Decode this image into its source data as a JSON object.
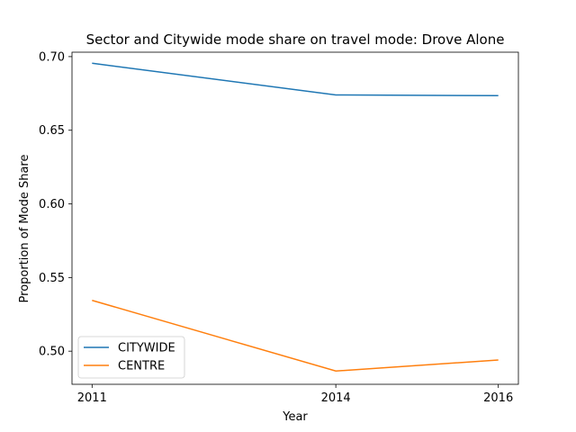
{
  "chart_data": {
    "type": "line",
    "title": "Sector and Citywide mode share on travel mode: Drove Alone",
    "xlabel": "Year",
    "ylabel": "Proportion of Mode Share",
    "x": [
      "2011",
      "2014",
      "2016"
    ],
    "series": [
      {
        "name": "CITYWIDE",
        "values": [
          0.6955,
          0.674,
          0.6735
        ],
        "color": "#1f77b4"
      },
      {
        "name": "CENTRE",
        "values": [
          0.5345,
          0.4865,
          0.494
        ],
        "color": "#ff7f0e"
      }
    ],
    "ylim": [
      0.4775,
      0.703
    ],
    "yticks": [
      "0.50",
      "0.55",
      "0.60",
      "0.65",
      "0.70"
    ],
    "grid": false,
    "legend_position": "lower-left"
  }
}
